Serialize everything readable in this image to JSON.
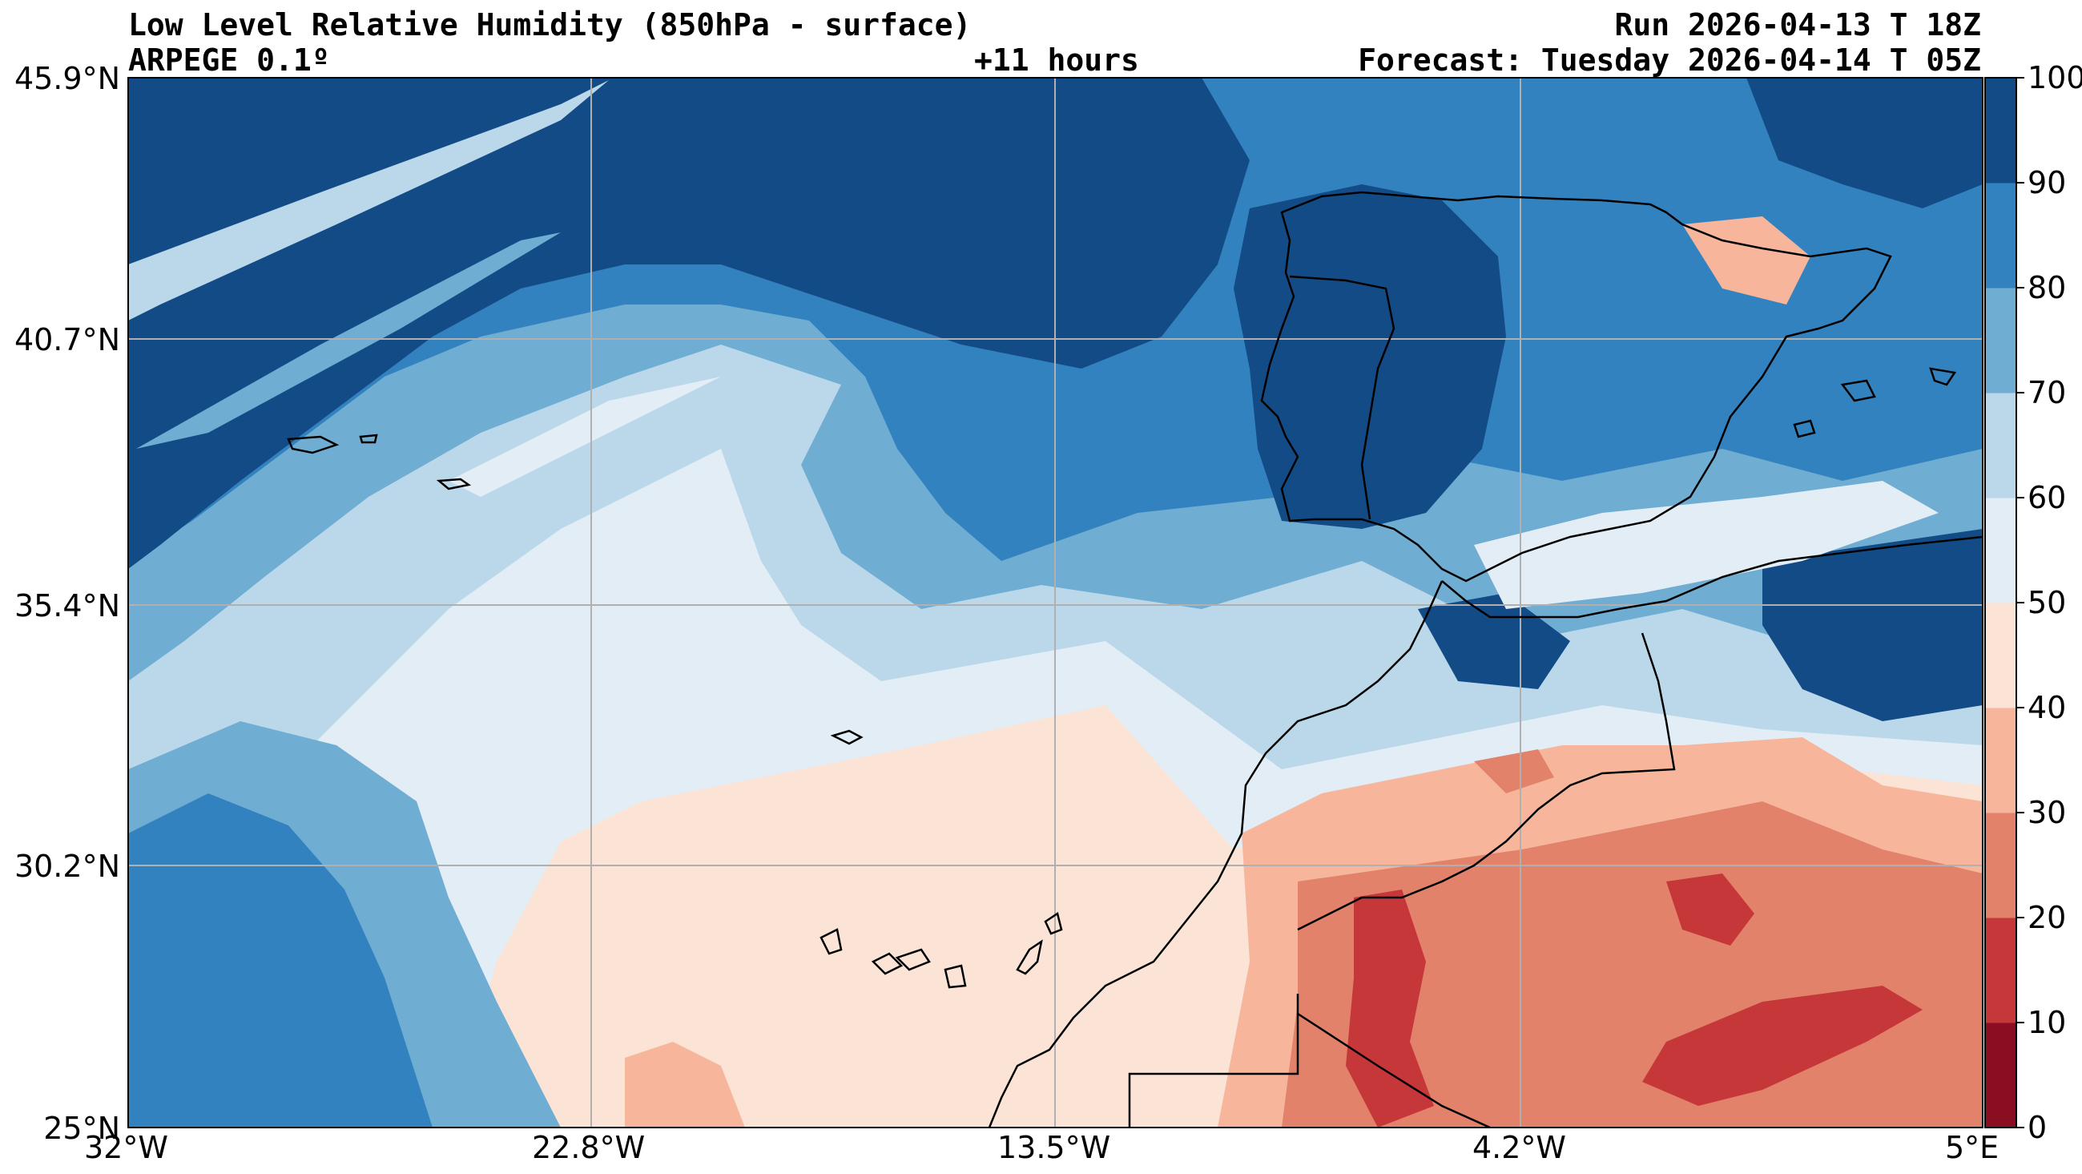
{
  "header": {
    "title": "Low Level Relative Humidity (850hPa - surface)",
    "model": "ARPEGE 0.1º",
    "lead": "+11 hours",
    "run": "Run 2026-04-13 T 18Z",
    "forecast": "Forecast: Tuesday 2026-04-14 T 05Z"
  },
  "axes": {
    "lat_labels": [
      "45.9°N",
      "40.7°N",
      "35.4°N",
      "30.2°N",
      "25°N"
    ],
    "lon_labels": [
      "32°W",
      "22.8°W",
      "13.5°W",
      "4.2°W",
      "5°E"
    ],
    "lat_range": [
      25,
      45.9
    ],
    "lon_range": [
      -32,
      5
    ]
  },
  "colorbar": {
    "ticks": [
      "100",
      "90",
      "80",
      "70",
      "60",
      "50",
      "40",
      "30",
      "20",
      "10",
      "0"
    ],
    "levels": [
      0,
      10,
      20,
      30,
      40,
      50,
      60,
      70,
      80,
      90,
      100
    ],
    "colors": [
      "#8b0d22",
      "#c6373a",
      "#e2826a",
      "#f7b69b",
      "#fbe3d6",
      "#e3edf5",
      "#bbd8ea",
      "#6fadd3",
      "#3282bf",
      "#134b87"
    ]
  }
}
